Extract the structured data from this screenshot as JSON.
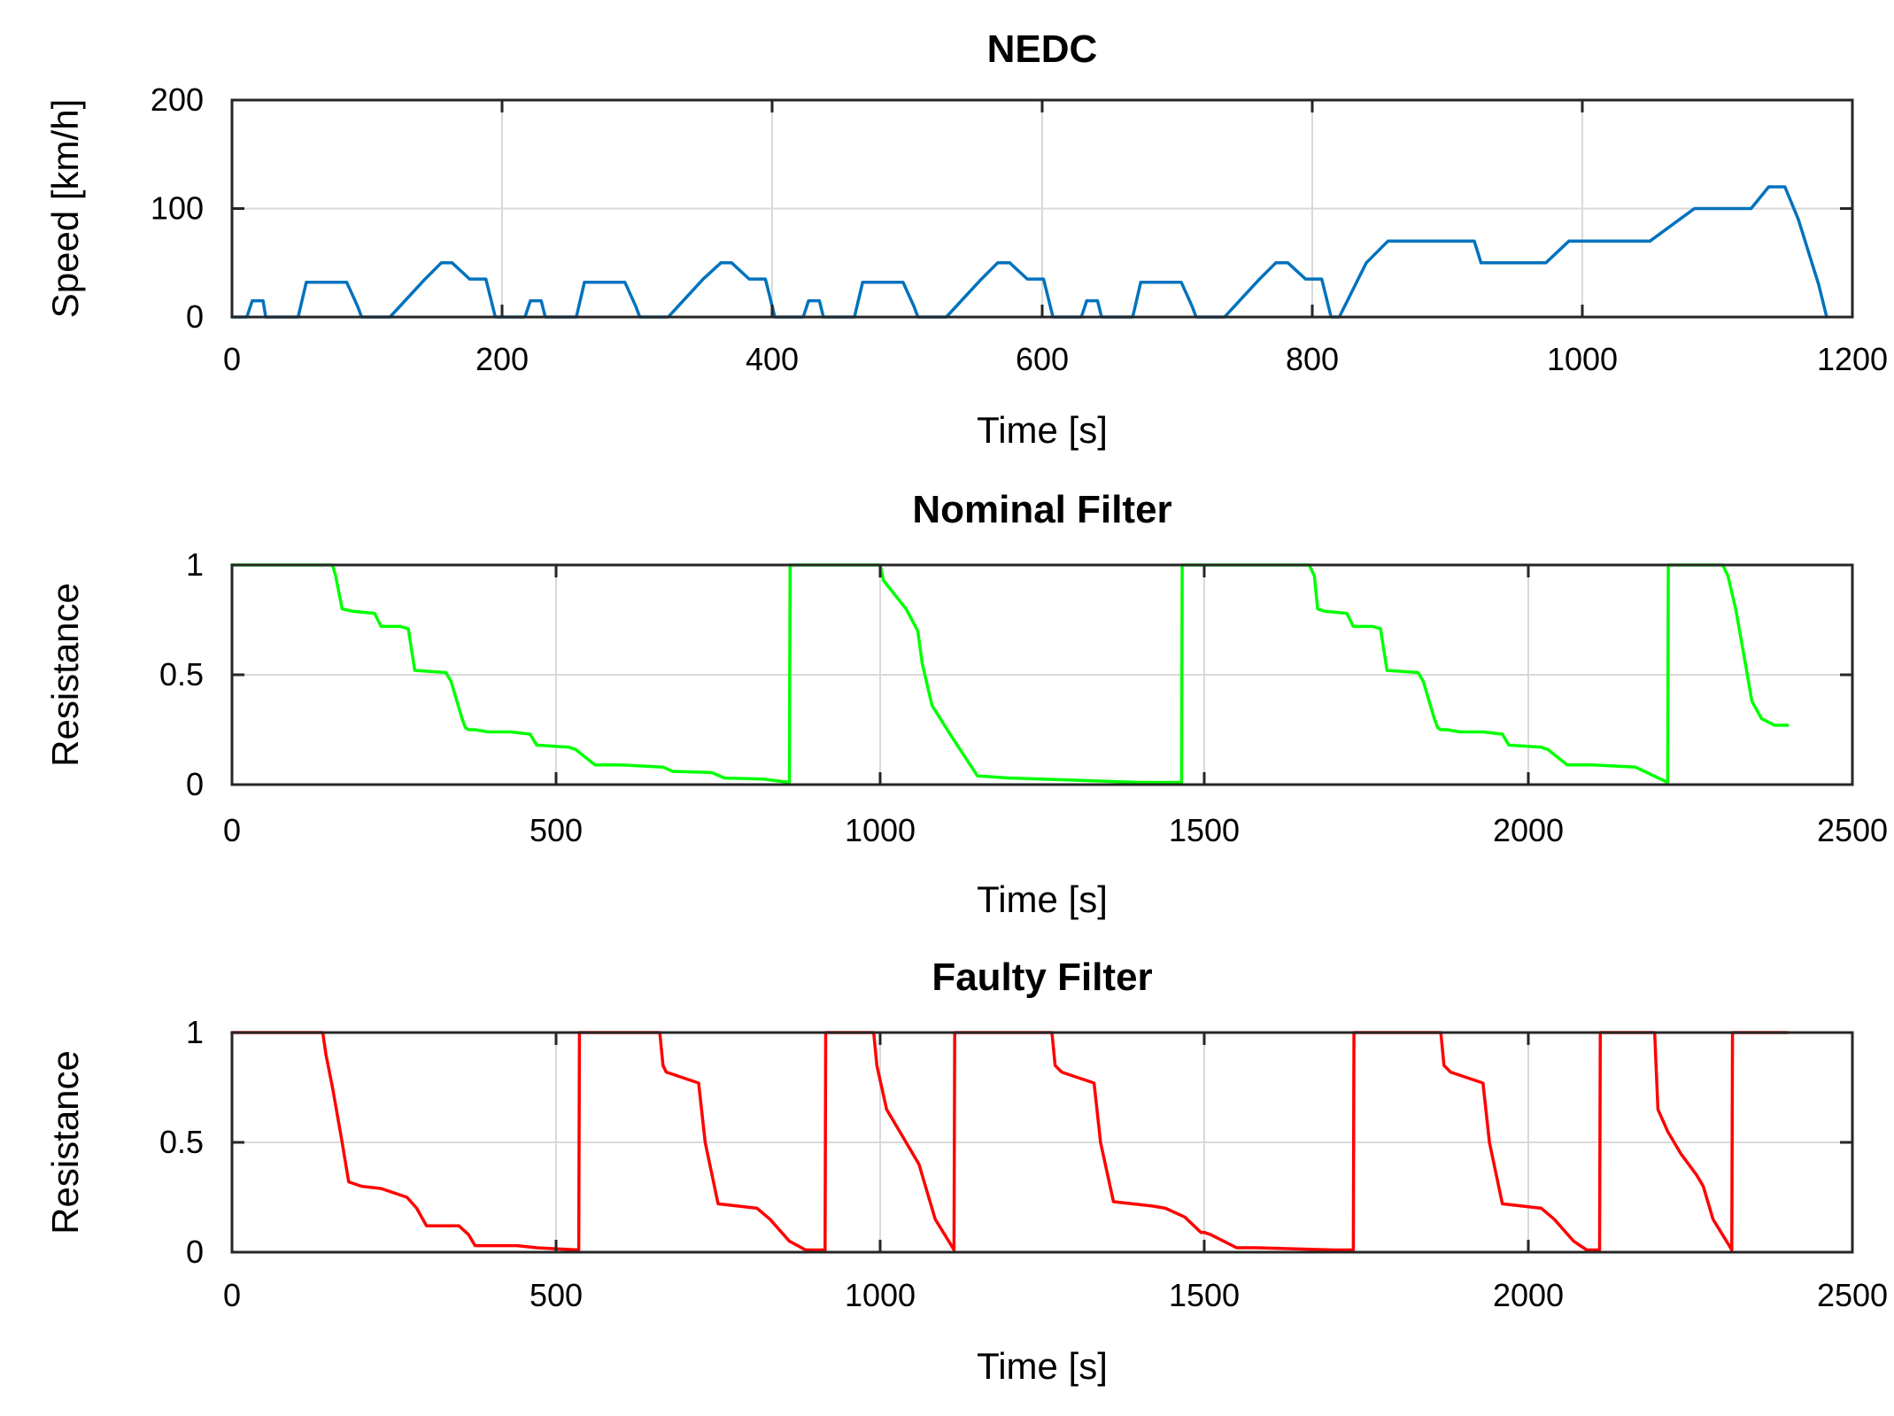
{
  "chart_data": [
    {
      "type": "line",
      "title": "NEDC",
      "xlabel": "Time [s]",
      "ylabel": "Speed [km/h]",
      "xlim": [
        0,
        1200
      ],
      "ylim": [
        0,
        200
      ],
      "xticks": [
        0,
        200,
        400,
        600,
        800,
        1000,
        1200
      ],
      "yticks": [
        0,
        100,
        200
      ],
      "grid": true,
      "color": "#0072BD",
      "series": [
        {
          "name": "Speed",
          "x": [
            0,
            11,
            15,
            23,
            25,
            28,
            44,
            49,
            55,
            61,
            85,
            93,
            96,
            117,
            143,
            155,
            163,
            176,
            178,
            188,
            195,
            206,
            217,
            221,
            229,
            232,
            236,
            250,
            255,
            261,
            267,
            291,
            299,
            302,
            323,
            349,
            362,
            370,
            383,
            385,
            395,
            402,
            412,
            423,
            427,
            435,
            438,
            442,
            456,
            461,
            467,
            473,
            497,
            505,
            508,
            529,
            555,
            567,
            576,
            589,
            591,
            601,
            608,
            618,
            629,
            633,
            641,
            644,
            648,
            662,
            667,
            673,
            679,
            703,
            711,
            714,
            735,
            761,
            773,
            782,
            795,
            797,
            807,
            814,
            820,
            840,
            856,
            866,
            920,
            925,
            960,
            973,
            990,
            1001,
            1050,
            1083,
            1100,
            1125,
            1138,
            1150,
            1160,
            1175,
            1181
          ],
          "y": [
            0,
            0,
            15,
            15,
            0,
            0,
            0,
            0,
            32,
            32,
            32,
            10,
            0,
            0,
            35,
            50,
            50,
            35,
            35,
            35,
            0,
            0,
            0,
            15,
            15,
            0,
            0,
            0,
            0,
            32,
            32,
            32,
            10,
            0,
            0,
            35,
            50,
            50,
            35,
            35,
            35,
            0,
            0,
            0,
            15,
            15,
            0,
            0,
            0,
            0,
            32,
            32,
            32,
            10,
            0,
            0,
            35,
            50,
            50,
            35,
            35,
            35,
            0,
            0,
            0,
            15,
            15,
            0,
            0,
            0,
            0,
            32,
            32,
            32,
            10,
            0,
            0,
            35,
            50,
            50,
            35,
            35,
            35,
            0,
            0,
            50,
            70,
            70,
            70,
            50,
            50,
            50,
            70,
            70,
            70,
            100,
            100,
            100,
            120,
            120,
            90,
            30,
            0
          ]
        }
      ]
    },
    {
      "type": "line",
      "title": "Nominal Filter",
      "xlabel": "Time [s]",
      "ylabel": "Resistance",
      "xlim": [
        0,
        2500
      ],
      "ylim": [
        0,
        1
      ],
      "xticks": [
        0,
        500,
        1000,
        1500,
        2000,
        2500
      ],
      "yticks": [
        0,
        0.5,
        1
      ],
      "ytick_labels": [
        "0",
        "0.5",
        "1"
      ],
      "grid": true,
      "color": "#00FF00",
      "series": [
        {
          "name": "Nominal",
          "x": [
            0,
            155,
            160,
            170,
            185,
            220,
            230,
            260,
            272,
            282,
            330,
            338,
            350,
            355,
            360,
            365,
            375,
            395,
            430,
            460,
            470,
            520,
            530,
            560,
            600,
            665,
            680,
            740,
            760,
            820,
            860,
            861,
            1000,
            1005,
            1040,
            1058,
            1065,
            1080,
            1110,
            1150,
            1200,
            1300,
            1400,
            1465,
            1466,
            1662,
            1670,
            1675,
            1685,
            1720,
            1730,
            1760,
            1772,
            1782,
            1830,
            1838,
            1850,
            1855,
            1860,
            1865,
            1875,
            1895,
            1930,
            1960,
            1970,
            2020,
            2030,
            2060,
            2100,
            2165,
            2215,
            2216,
            2300,
            2308,
            2320,
            2335,
            2345,
            2360,
            2380,
            2400
          ],
          "y": [
            1,
            1,
            0.95,
            0.8,
            0.79,
            0.78,
            0.72,
            0.72,
            0.71,
            0.52,
            0.51,
            0.47,
            0.35,
            0.3,
            0.26,
            0.25,
            0.25,
            0.24,
            0.24,
            0.23,
            0.18,
            0.17,
            0.16,
            0.09,
            0.09,
            0.08,
            0.06,
            0.055,
            0.03,
            0.025,
            0.01,
            1,
            1,
            0.93,
            0.8,
            0.7,
            0.55,
            0.36,
            0.22,
            0.04,
            0.03,
            0.02,
            0.01,
            0.01,
            1,
            1,
            0.95,
            0.8,
            0.79,
            0.78,
            0.72,
            0.72,
            0.71,
            0.52,
            0.51,
            0.47,
            0.35,
            0.3,
            0.26,
            0.25,
            0.25,
            0.24,
            0.24,
            0.23,
            0.18,
            0.17,
            0.16,
            0.09,
            0.09,
            0.08,
            0.01,
            1,
            1,
            0.95,
            0.8,
            0.55,
            0.38,
            0.3,
            0.27,
            0.27
          ]
        }
      ]
    },
    {
      "type": "line",
      "title": "Faulty Filter",
      "xlabel": "Time [s]",
      "ylabel": "Resistance",
      "xlim": [
        0,
        2500
      ],
      "ylim": [
        0,
        1
      ],
      "xticks": [
        0,
        500,
        1000,
        1500,
        2000,
        2500
      ],
      "yticks": [
        0,
        0.5,
        1
      ],
      "ytick_labels": [
        "0",
        "0.5",
        "1"
      ],
      "grid": true,
      "color": "#FF0000",
      "series": [
        {
          "name": "Faulty",
          "x": [
            0,
            140,
            145,
            155,
            170,
            180,
            200,
            230,
            270,
            285,
            300,
            350,
            365,
            375,
            440,
            470,
            535,
            536,
            660,
            665,
            670,
            690,
            720,
            730,
            750,
            810,
            830,
            860,
            885,
            915,
            916,
            990,
            995,
            1010,
            1030,
            1060,
            1070,
            1085,
            1110,
            1114,
            1115,
            1265,
            1270,
            1280,
            1300,
            1330,
            1340,
            1360,
            1420,
            1440,
            1470,
            1495,
            1500,
            1510,
            1550,
            1580,
            1700,
            1730,
            1731,
            1865,
            1870,
            1880,
            1900,
            1930,
            1940,
            1960,
            2020,
            2040,
            2070,
            2090,
            2110,
            2111,
            2195,
            2200,
            2215,
            2235,
            2260,
            2270,
            2285,
            2310,
            2314,
            2315,
            2400
          ],
          "y": [
            1,
            1,
            0.9,
            0.75,
            0.5,
            0.32,
            0.3,
            0.29,
            0.25,
            0.2,
            0.12,
            0.12,
            0.08,
            0.03,
            0.03,
            0.02,
            0.01,
            1,
            1,
            0.85,
            0.82,
            0.8,
            0.77,
            0.5,
            0.22,
            0.2,
            0.15,
            0.05,
            0.01,
            0.01,
            1,
            1,
            0.85,
            0.65,
            0.55,
            0.4,
            0.3,
            0.15,
            0.03,
            0.01,
            1,
            1,
            0.85,
            0.82,
            0.8,
            0.77,
            0.5,
            0.23,
            0.21,
            0.2,
            0.16,
            0.09,
            0.09,
            0.08,
            0.02,
            0.02,
            0.01,
            0.01,
            1,
            1,
            0.85,
            0.82,
            0.8,
            0.77,
            0.5,
            0.22,
            0.2,
            0.15,
            0.05,
            0.01,
            0.01,
            1,
            1,
            0.65,
            0.55,
            0.45,
            0.35,
            0.3,
            0.15,
            0.03,
            0.01,
            1,
            1
          ]
        }
      ]
    }
  ]
}
